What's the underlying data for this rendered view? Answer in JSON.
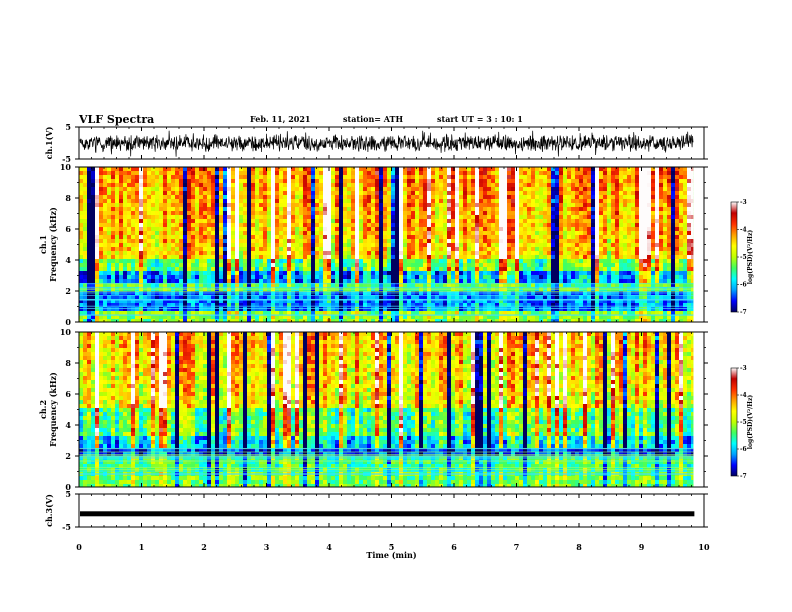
{
  "header": {
    "title": "VLF Spectra",
    "date": "Feb. 11, 2021",
    "station": "station= ATH",
    "start": "start UT = 3 : 10: 1"
  },
  "chart_data": {
    "type": "heatmap",
    "time_axis": {
      "label": "Time (min)",
      "range": [
        0,
        10
      ],
      "ticks": [
        "0",
        "1",
        "2",
        "3",
        "4",
        "5",
        "6",
        "7",
        "8",
        "9",
        "10"
      ],
      "data_end": 9.83
    },
    "ch1_waveform": {
      "ylabel": "ch.1(V)",
      "ylim": [
        -5,
        5
      ],
      "ticks": [
        "5",
        "-5"
      ],
      "baseline": 0
    },
    "ch1_spectrogram": {
      "ylabel_line1": "ch.1",
      "ylabel_line2": "Frequency (kHz)",
      "ylim": [
        0,
        10
      ],
      "ticks": [
        "0",
        "2",
        "4",
        "6",
        "8",
        "10"
      ]
    },
    "ch2_spectrogram": {
      "ylabel_line1": "ch.2",
      "ylabel_line2": "Frequency (kHz)",
      "ylim": [
        0,
        10
      ],
      "ticks": [
        "0",
        "2",
        "4",
        "6",
        "8",
        "10"
      ]
    },
    "ch3_waveform": {
      "ylabel": "ch.3(V)",
      "ylim": [
        -5,
        5
      ],
      "ticks": [
        "5",
        "-5"
      ],
      "baseline": -1
    },
    "colorbar": {
      "label": "log(PSD)(V²/Hz)",
      "range": [
        -7,
        -3
      ],
      "ticks": [
        "-3",
        "-4",
        "-5",
        "-6",
        "-7"
      ],
      "colors": [
        "#000060",
        "#0000ff",
        "#00a0ff",
        "#00ffff",
        "#40ff60",
        "#c0ff00",
        "#ffff00",
        "#ffa000",
        "#ff3000",
        "#c00000",
        "#ffffff"
      ]
    }
  }
}
